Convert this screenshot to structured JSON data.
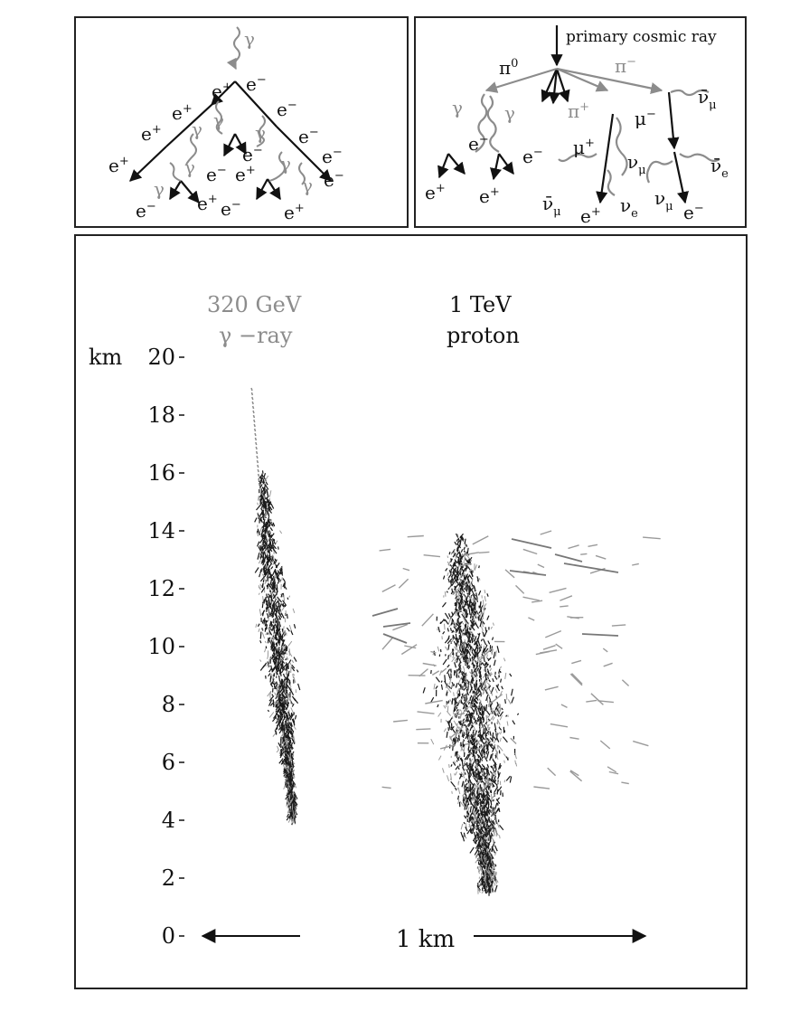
{
  "em_cascade": {
    "gamma": "γ",
    "particles": [
      {
        "id": "p1",
        "base": "e",
        "sup": "+"
      },
      {
        "id": "p2",
        "base": "e",
        "sup": "−"
      },
      {
        "id": "p3",
        "base": "e",
        "sup": "+"
      },
      {
        "id": "p4",
        "base": "γ",
        "sup": ""
      },
      {
        "id": "p5",
        "base": "e",
        "sup": "−"
      },
      {
        "id": "p6",
        "base": "e",
        "sup": "+"
      },
      {
        "id": "p7",
        "base": "γ",
        "sup": ""
      },
      {
        "id": "p8",
        "base": "e",
        "sup": "−"
      },
      {
        "id": "p9",
        "base": "e",
        "sup": "+"
      },
      {
        "id": "p10",
        "base": "γ",
        "sup": ""
      },
      {
        "id": "p11",
        "base": "e",
        "sup": "−"
      },
      {
        "id": "p12",
        "base": "e",
        "sup": "+"
      },
      {
        "id": "p13",
        "base": "γ",
        "sup": ""
      },
      {
        "id": "p14",
        "base": "e",
        "sup": "−"
      },
      {
        "id": "p15",
        "base": "γ",
        "sup": ""
      },
      {
        "id": "p16",
        "base": "e",
        "sup": "−"
      },
      {
        "id": "p17",
        "base": "γ",
        "sup": ""
      },
      {
        "id": "p18",
        "base": "e",
        "sup": "−"
      },
      {
        "id": "p19",
        "base": "e",
        "sup": "+"
      },
      {
        "id": "p20",
        "base": "e",
        "sup": "−"
      },
      {
        "id": "p21",
        "base": "e",
        "sup": "+"
      },
      {
        "id": "p22",
        "base": "e",
        "sup": "−"
      },
      {
        "id": "p23",
        "base": "γ",
        "sup": ""
      }
    ]
  },
  "hadron_cascade": {
    "title": "primary cosmic ray",
    "particles": [
      {
        "id": "h1",
        "base": "π",
        "sup": "0",
        "sub": ""
      },
      {
        "id": "h2",
        "base": "π",
        "sup": "−",
        "sub": ""
      },
      {
        "id": "h3",
        "base": "π",
        "sup": "+",
        "sub": ""
      },
      {
        "id": "h4",
        "base": "ν̄",
        "sup": "",
        "sub": "μ"
      },
      {
        "id": "h5",
        "base": "γ",
        "sup": "",
        "sub": ""
      },
      {
        "id": "h6",
        "base": "γ",
        "sup": "",
        "sub": ""
      },
      {
        "id": "h7",
        "base": "μ",
        "sup": "−",
        "sub": ""
      },
      {
        "id": "h8",
        "base": "e",
        "sup": "−",
        "sub": ""
      },
      {
        "id": "h9",
        "base": "e",
        "sup": "−",
        "sub": ""
      },
      {
        "id": "h10",
        "base": "μ",
        "sup": "+",
        "sub": ""
      },
      {
        "id": "h11",
        "base": "ν",
        "sup": "",
        "sub": "μ"
      },
      {
        "id": "h12",
        "base": "ν̄",
        "sup": "",
        "sub": "e"
      },
      {
        "id": "h13",
        "base": "e",
        "sup": "+",
        "sub": ""
      },
      {
        "id": "h14",
        "base": "e",
        "sup": "+",
        "sub": ""
      },
      {
        "id": "h15",
        "base": "ν̄",
        "sup": "",
        "sub": "μ"
      },
      {
        "id": "h16",
        "base": "e",
        "sup": "+",
        "sub": ""
      },
      {
        "id": "h17",
        "base": "ν",
        "sup": "",
        "sub": "e"
      },
      {
        "id": "h18",
        "base": "ν",
        "sup": "",
        "sub": "μ"
      },
      {
        "id": "h19",
        "base": "e",
        "sup": "−",
        "sub": ""
      }
    ]
  },
  "shower_plot": {
    "gamma_label_line1": "320 GeV",
    "gamma_label_line2": "γ −ray",
    "proton_label_line1": "1 TeV",
    "proton_label_line2": "proton",
    "axis_unit": "km",
    "y_ticks": [
      "0",
      "2",
      "4",
      "6",
      "8",
      "10",
      "12",
      "14",
      "16",
      "18",
      "20"
    ],
    "scale_bar_label": "1 km",
    "colors": {
      "gamma_label": "#8c8c8c",
      "ink": "#111111"
    }
  }
}
